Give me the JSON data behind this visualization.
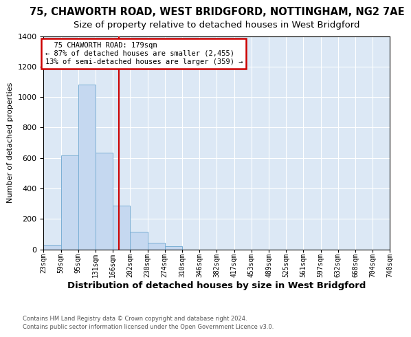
{
  "title": "75, CHAWORTH ROAD, WEST BRIDGFORD, NOTTINGHAM, NG2 7AE",
  "subtitle": "Size of property relative to detached houses in West Bridgford",
  "xlabel": "Distribution of detached houses by size in West Bridgford",
  "ylabel": "Number of detached properties",
  "footnote1": "Contains HM Land Registry data © Crown copyright and database right 2024.",
  "footnote2": "Contains public sector information licensed under the Open Government Licence v3.0.",
  "annotation_title": "75 CHAWORTH ROAD: 179sqm",
  "annotation_line1": "← 87% of detached houses are smaller (2,455)",
  "annotation_line2": "13% of semi-detached houses are larger (359) →",
  "bin_labels": [
    "23sqm",
    "59sqm",
    "95sqm",
    "131sqm",
    "166sqm",
    "202sqm",
    "238sqm",
    "274sqm",
    "310sqm",
    "346sqm",
    "382sqm",
    "417sqm",
    "453sqm",
    "489sqm",
    "525sqm",
    "561sqm",
    "597sqm",
    "632sqm",
    "668sqm",
    "704sqm",
    "740sqm"
  ],
  "bar_values": [
    30,
    615,
    1080,
    635,
    285,
    115,
    45,
    20,
    0,
    0,
    0,
    0,
    0,
    0,
    0,
    0,
    0,
    0,
    0,
    0
  ],
  "bar_color": "#c5d8f0",
  "bar_edge_color": "#7bafd4",
  "property_size": 179,
  "xmin": 23,
  "xmax": 740,
  "ymax": 1400,
  "bin_width": 36,
  "background_color": "#dce8f5",
  "grid_color": "#ffffff",
  "vline_color": "#cc0000",
  "annotation_box_edgecolor": "#cc0000",
  "title_fontsize": 10.5,
  "subtitle_fontsize": 9.5,
  "ylabel_fontsize": 8,
  "xlabel_fontsize": 9.5
}
